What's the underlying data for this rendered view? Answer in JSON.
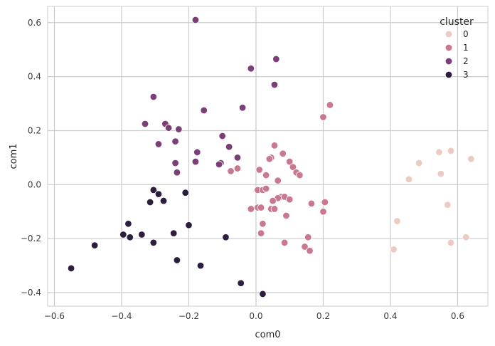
{
  "chart_data": {
    "type": "scatter",
    "xlabel": "com0",
    "ylabel": "com1",
    "xlim": [
      -0.62,
      0.69
    ],
    "ylim": [
      -0.45,
      0.66
    ],
    "xticks": [
      -0.6,
      -0.4,
      -0.2,
      0.0,
      0.2,
      0.4,
      0.6
    ],
    "xtick_labels": [
      "−0.6",
      "−0.4",
      "−0.2",
      "0.0",
      "0.2",
      "0.4",
      "0.6"
    ],
    "yticks": [
      -0.4,
      -0.2,
      0.0,
      0.2,
      0.4,
      0.6
    ],
    "ytick_labels": [
      "−0.4",
      "−0.2",
      "0.0",
      "0.2",
      "0.4",
      "0.6"
    ],
    "grid": true,
    "legend": {
      "title": "cluster",
      "position": "top-right"
    },
    "series": [
      {
        "name": "0",
        "color": "#eccbc2",
        "points": [
          [
            0.64,
            0.095
          ],
          [
            0.58,
            0.125
          ],
          [
            0.545,
            0.12
          ],
          [
            0.485,
            0.08
          ],
          [
            0.455,
            0.02
          ],
          [
            0.55,
            0.04
          ],
          [
            0.57,
            -0.075
          ],
          [
            0.42,
            -0.135
          ],
          [
            0.625,
            -0.195
          ],
          [
            0.58,
            -0.215
          ],
          [
            0.41,
            -0.24
          ]
        ]
      },
      {
        "name": "1",
        "color": "#c9788e",
        "points": [
          [
            0.22,
            0.295
          ],
          [
            0.2,
            0.25
          ],
          [
            0.055,
            0.145
          ],
          [
            0.08,
            0.115
          ],
          [
            0.045,
            0.1
          ],
          [
            0.04,
            0.095
          ],
          [
            0.1,
            0.085
          ],
          [
            0.11,
            0.065
          ],
          [
            0.12,
            0.045
          ],
          [
            0.13,
            0.035
          ],
          [
            0.01,
            0.055
          ],
          [
            0.03,
            0.035
          ],
          [
            0.065,
            0.015
          ],
          [
            -0.075,
            0.05
          ],
          [
            -0.055,
            0.06
          ],
          [
            0.005,
            -0.02
          ],
          [
            0.02,
            -0.02
          ],
          [
            0.03,
            -0.015
          ],
          [
            0.075,
            -0.045
          ],
          [
            0.085,
            -0.045
          ],
          [
            0.1,
            -0.055
          ],
          [
            0.065,
            -0.05
          ],
          [
            0.05,
            -0.06
          ],
          [
            0.205,
            -0.065
          ],
          [
            0.165,
            -0.07
          ],
          [
            -0.015,
            -0.09
          ],
          [
            0.005,
            -0.085
          ],
          [
            0.015,
            -0.085
          ],
          [
            0.045,
            -0.09
          ],
          [
            0.055,
            -0.09
          ],
          [
            0.2,
            -0.1
          ],
          [
            0.09,
            -0.115
          ],
          [
            0.02,
            -0.145
          ],
          [
            0.015,
            -0.18
          ],
          [
            0.155,
            -0.195
          ],
          [
            0.085,
            -0.215
          ],
          [
            0.145,
            -0.23
          ],
          [
            0.16,
            -0.245
          ]
        ]
      },
      {
        "name": "2",
        "color": "#7b3f78",
        "points": [
          [
            -0.18,
            0.61
          ],
          [
            0.06,
            0.465
          ],
          [
            -0.015,
            0.43
          ],
          [
            0.055,
            0.37
          ],
          [
            -0.305,
            0.325
          ],
          [
            -0.04,
            0.285
          ],
          [
            -0.155,
            0.275
          ],
          [
            -0.33,
            0.225
          ],
          [
            -0.27,
            0.225
          ],
          [
            -0.26,
            0.21
          ],
          [
            -0.23,
            0.205
          ],
          [
            -0.1,
            0.18
          ],
          [
            -0.24,
            0.16
          ],
          [
            -0.29,
            0.15
          ],
          [
            -0.08,
            0.14
          ],
          [
            -0.175,
            0.12
          ],
          [
            -0.055,
            0.1
          ],
          [
            -0.18,
            0.085
          ],
          [
            -0.105,
            0.08
          ],
          [
            -0.11,
            0.075
          ],
          [
            -0.24,
            0.08
          ],
          [
            -0.235,
            0.045
          ]
        ]
      },
      {
        "name": "3",
        "color": "#2d1e3e",
        "points": [
          [
            -0.305,
            -0.02
          ],
          [
            -0.21,
            -0.03
          ],
          [
            -0.29,
            -0.035
          ],
          [
            -0.315,
            -0.065
          ],
          [
            -0.275,
            -0.06
          ],
          [
            -0.38,
            -0.145
          ],
          [
            -0.2,
            -0.15
          ],
          [
            -0.395,
            -0.185
          ],
          [
            -0.34,
            -0.185
          ],
          [
            -0.245,
            -0.18
          ],
          [
            -0.375,
            -0.195
          ],
          [
            -0.09,
            -0.195
          ],
          [
            -0.305,
            -0.215
          ],
          [
            -0.48,
            -0.225
          ],
          [
            -0.235,
            -0.28
          ],
          [
            -0.165,
            -0.3
          ],
          [
            -0.55,
            -0.31
          ],
          [
            -0.045,
            -0.365
          ],
          [
            0.02,
            -0.405
          ]
        ]
      }
    ]
  }
}
